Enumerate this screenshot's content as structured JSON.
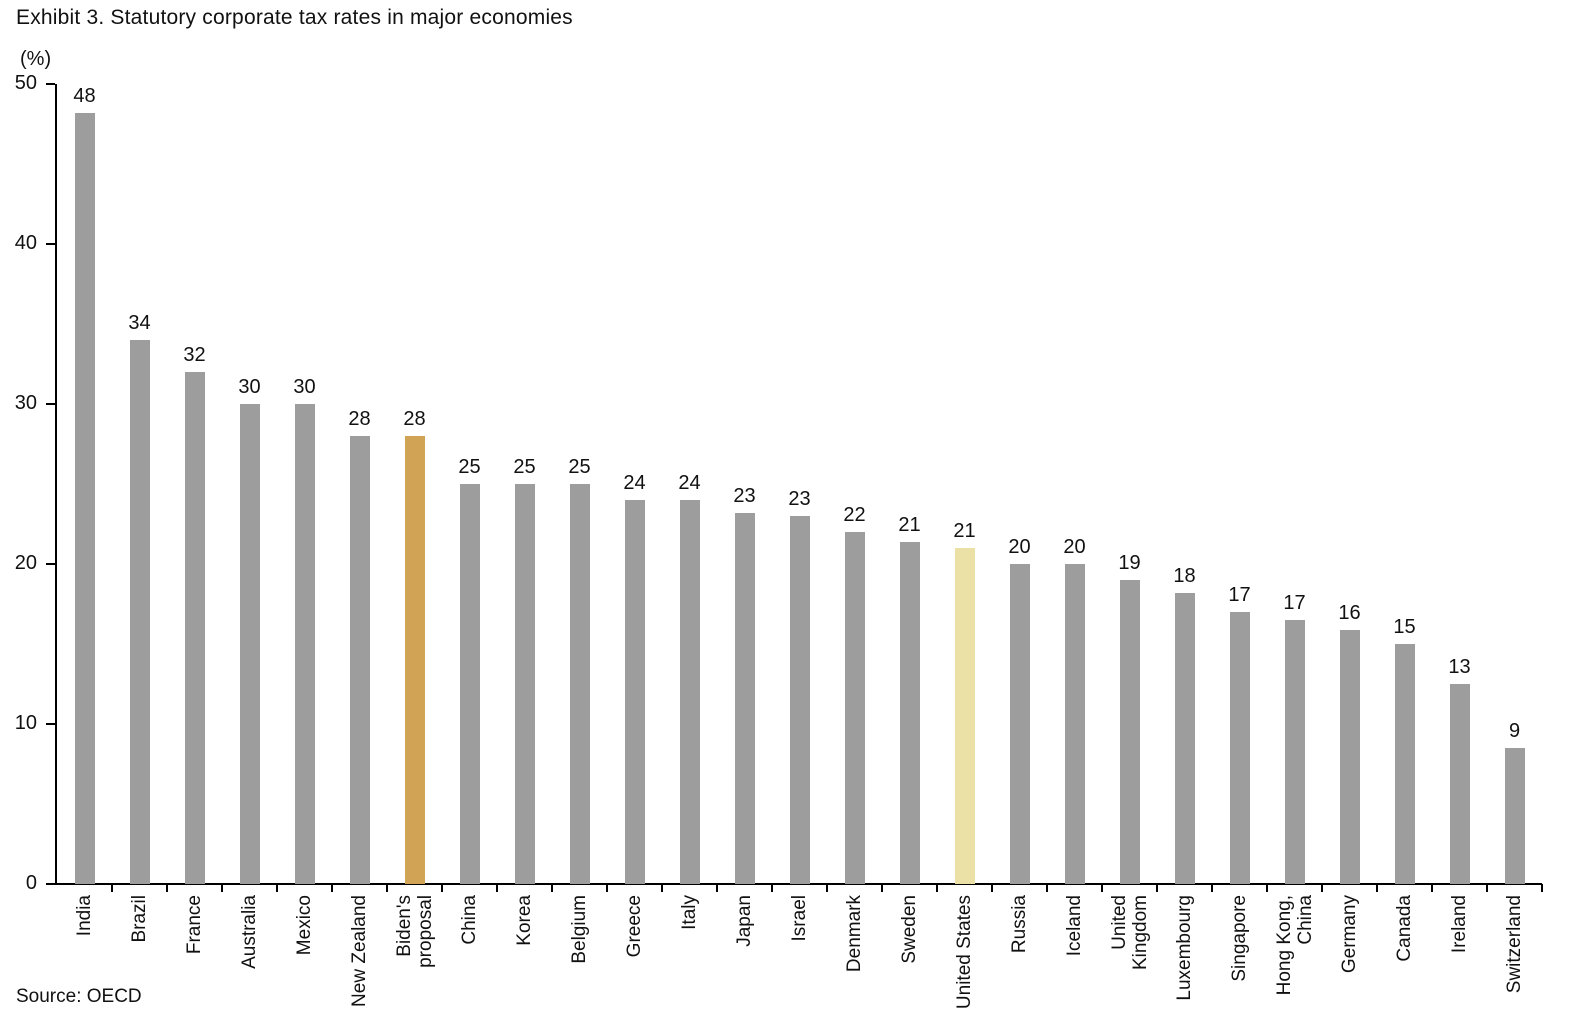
{
  "header": {
    "title": "Exhibit 3. Statutory corporate tax rates in major economies"
  },
  "footer": {
    "source": "Source: OECD"
  },
  "colors": {
    "bar_default": "#9d9d9d",
    "bar_biden_proposal": "#d0a355",
    "bar_united_states": "#ebe0a6",
    "axis": "#000000",
    "text": "#111111"
  },
  "chart_data": {
    "type": "bar",
    "title": "Exhibit 3. Statutory corporate tax rates in major economies",
    "unit_label": "(%)",
    "xlabel": "",
    "ylabel": "(%)",
    "ylim": [
      0,
      50
    ],
    "yticks": [
      0,
      10,
      20,
      30,
      40,
      50
    ],
    "grid": false,
    "legend": "none",
    "bars": [
      {
        "category": "India",
        "value": 48.2,
        "data_label": "48",
        "color": "#9d9d9d"
      },
      {
        "category": "Brazil",
        "value": 34,
        "data_label": "34",
        "color": "#9d9d9d"
      },
      {
        "category": "France",
        "value": 32,
        "data_label": "32",
        "color": "#9d9d9d"
      },
      {
        "category": "Australia",
        "value": 30,
        "data_label": "30",
        "color": "#9d9d9d"
      },
      {
        "category": "Mexico",
        "value": 30,
        "data_label": "30",
        "color": "#9d9d9d"
      },
      {
        "category": "New Zealand",
        "value": 28,
        "data_label": "28",
        "color": "#9d9d9d"
      },
      {
        "category": "Biden's\nproposal",
        "value": 28,
        "data_label": "28",
        "color": "#d0a355"
      },
      {
        "category": "China",
        "value": 25,
        "data_label": "25",
        "color": "#9d9d9d"
      },
      {
        "category": "Korea",
        "value": 25,
        "data_label": "25",
        "color": "#9d9d9d"
      },
      {
        "category": "Belgium",
        "value": 25,
        "data_label": "25",
        "color": "#9d9d9d"
      },
      {
        "category": "Greece",
        "value": 24,
        "data_label": "24",
        "color": "#9d9d9d"
      },
      {
        "category": "Italy",
        "value": 24,
        "data_label": "24",
        "color": "#9d9d9d"
      },
      {
        "category": "Japan",
        "value": 23.2,
        "data_label": "23",
        "color": "#9d9d9d"
      },
      {
        "category": "Israel",
        "value": 23,
        "data_label": "23",
        "color": "#9d9d9d"
      },
      {
        "category": "Denmark",
        "value": 22,
        "data_label": "22",
        "color": "#9d9d9d"
      },
      {
        "category": "Sweden",
        "value": 21.4,
        "data_label": "21",
        "color": "#9d9d9d"
      },
      {
        "category": "United States",
        "value": 21,
        "data_label": "21",
        "color": "#ebe0a6"
      },
      {
        "category": "Russia",
        "value": 20,
        "data_label": "20",
        "color": "#9d9d9d"
      },
      {
        "category": "Iceland",
        "value": 20,
        "data_label": "20",
        "color": "#9d9d9d"
      },
      {
        "category": "United\nKingdom",
        "value": 19,
        "data_label": "19",
        "color": "#9d9d9d"
      },
      {
        "category": "Luxembourg",
        "value": 18.2,
        "data_label": "18",
        "color": "#9d9d9d"
      },
      {
        "category": "Singapore",
        "value": 17,
        "data_label": "17",
        "color": "#9d9d9d"
      },
      {
        "category": "Hong Kong,\nChina",
        "value": 16.5,
        "data_label": "17",
        "color": "#9d9d9d"
      },
      {
        "category": "Germany",
        "value": 15.9,
        "data_label": "16",
        "color": "#9d9d9d"
      },
      {
        "category": "Canada",
        "value": 15,
        "data_label": "15",
        "color": "#9d9d9d"
      },
      {
        "category": "Ireland",
        "value": 12.5,
        "data_label": "13",
        "color": "#9d9d9d"
      },
      {
        "category": "Switzerland",
        "value": 8.5,
        "data_label": "9",
        "color": "#9d9d9d"
      }
    ]
  }
}
